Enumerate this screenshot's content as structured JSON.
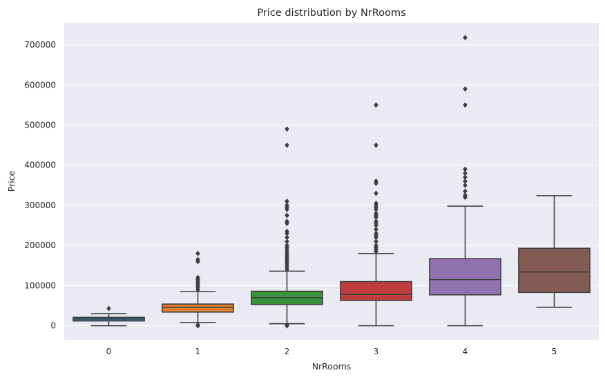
{
  "chart_data": {
    "type": "boxplot",
    "title": "Price distribution by NrRooms",
    "xlabel": "NrRooms",
    "ylabel": "Price",
    "ylim": [
      -35000,
      755000
    ],
    "y_ticks": [
      0,
      100000,
      200000,
      300000,
      400000,
      500000,
      600000,
      700000
    ],
    "y_tick_labels": [
      "0",
      "100000",
      "200000",
      "300000",
      "400000",
      "500000",
      "600000",
      "700000"
    ],
    "grid": true,
    "style": "seaborn-darkgrid",
    "categories": [
      "0",
      "1",
      "2",
      "3",
      "4",
      "5"
    ],
    "boxes": [
      {
        "category": "0",
        "color": "#3274a1",
        "whisker_low": 0,
        "q1": 12000,
        "median": 17000,
        "q3": 21000,
        "whisker_high": 30000,
        "outliers": [
          43000
        ]
      },
      {
        "category": "1",
        "color": "#e1812c",
        "whisker_low": 8000,
        "q1": 34000,
        "median": 46000,
        "q3": 54000,
        "whisker_high": 85000,
        "outliers": [
          0,
          1000,
          2000,
          90000,
          95000,
          100000,
          105000,
          110000,
          115000,
          120000,
          160000,
          165000,
          180000
        ]
      },
      {
        "category": "2",
        "color": "#3a923a",
        "whisker_low": 5000,
        "q1": 53000,
        "median": 70000,
        "q3": 86000,
        "whisker_high": 136000,
        "outliers": [
          0,
          1000,
          2000,
          140000,
          145000,
          150000,
          155000,
          160000,
          165000,
          170000,
          175000,
          180000,
          185000,
          190000,
          195000,
          200000,
          210000,
          220000,
          230000,
          235000,
          255000,
          260000,
          275000,
          290000,
          295000,
          300000,
          310000,
          450000,
          490000
        ]
      },
      {
        "category": "3",
        "color": "#c03d3e",
        "whisker_low": 0,
        "q1": 63000,
        "median": 78000,
        "q3": 110000,
        "whisker_high": 180000,
        "outliers": [
          185000,
          190000,
          195000,
          200000,
          210000,
          220000,
          225000,
          230000,
          240000,
          250000,
          255000,
          260000,
          270000,
          275000,
          280000,
          290000,
          295000,
          300000,
          305000,
          330000,
          355000,
          360000,
          450000,
          550000
        ]
      },
      {
        "category": "4",
        "color": "#9372b2",
        "whisker_low": 0,
        "q1": 77000,
        "median": 115000,
        "q3": 167000,
        "whisker_high": 298000,
        "outliers": [
          320000,
          325000,
          335000,
          350000,
          360000,
          370000,
          380000,
          390000,
          550000,
          590000,
          718000
        ]
      },
      {
        "category": "5",
        "color": "#845b53",
        "whisker_low": 46000,
        "q1": 83000,
        "median": 134000,
        "q3": 193000,
        "whisker_high": 324000,
        "outliers": []
      }
    ]
  }
}
